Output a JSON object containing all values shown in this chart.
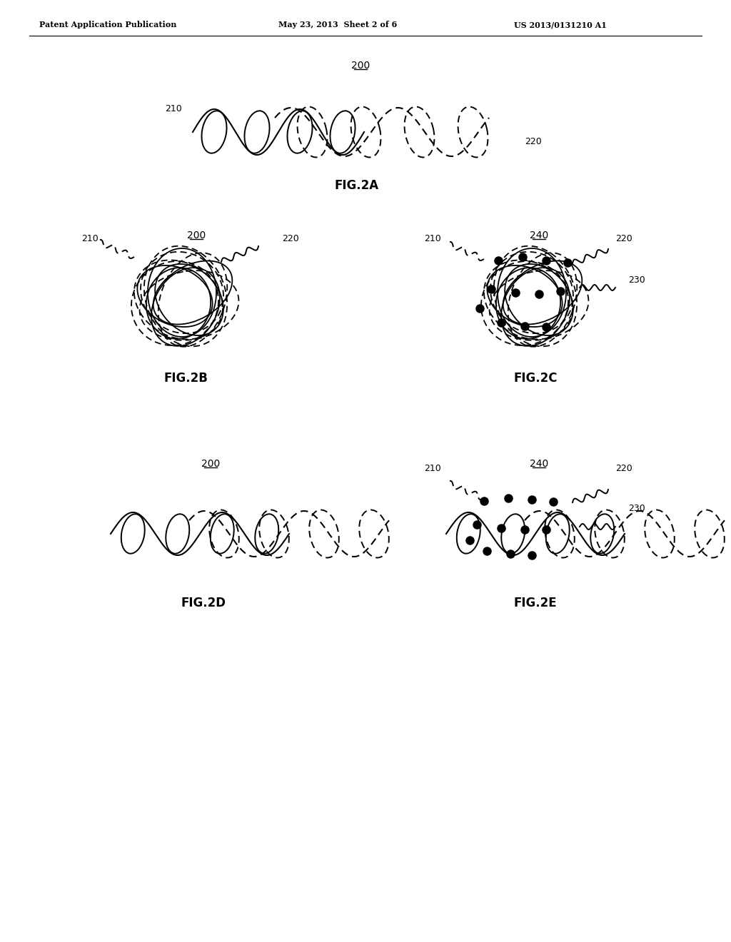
{
  "header_left": "Patent Application Publication",
  "header_mid": "May 23, 2013  Sheet 2 of 6",
  "header_right": "US 2013/0131210 A1",
  "bg_color": "#ffffff",
  "line_color": "#000000",
  "fig2a_label": "FIG.2A",
  "fig2b_label": "FIG.2B",
  "fig2c_label": "FIG.2C",
  "fig2d_label": "FIG.2D",
  "fig2e_label": "FIG.2E"
}
